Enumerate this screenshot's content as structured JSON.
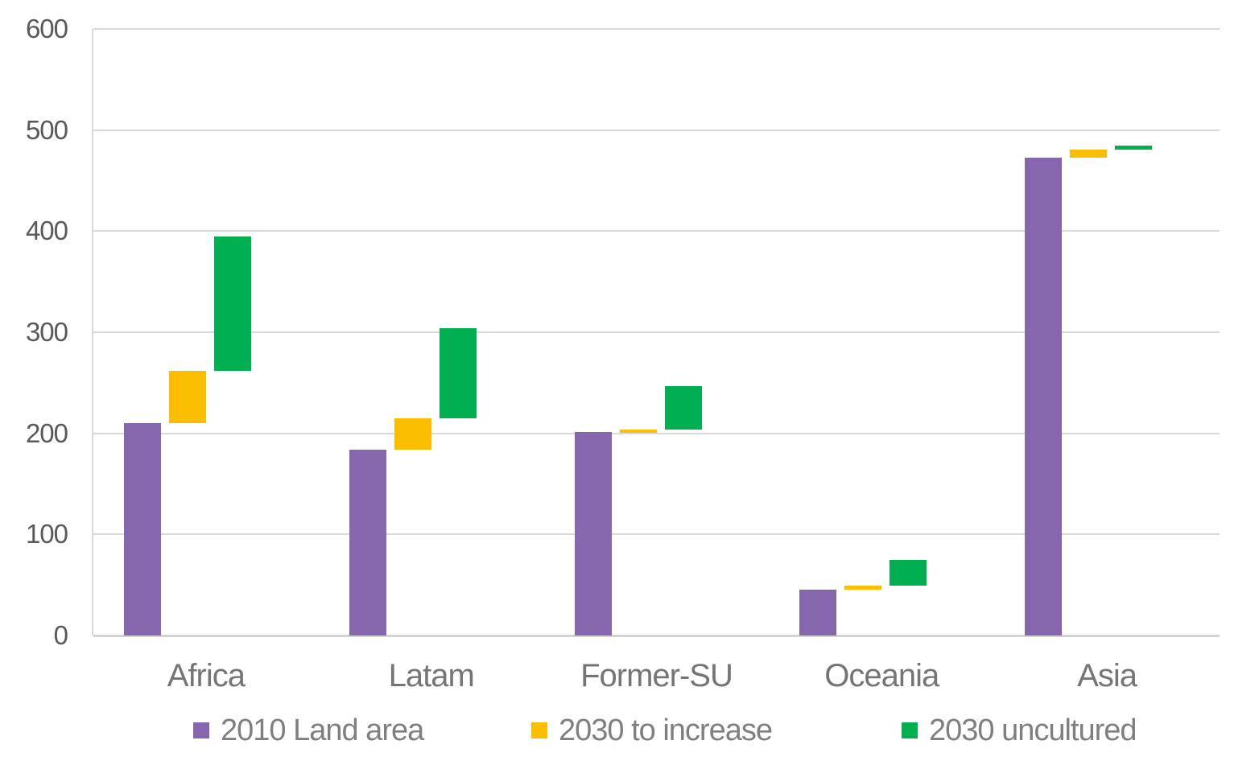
{
  "chart_data": {
    "type": "bar",
    "subtype": "floating-waterfall-columns",
    "title": "",
    "xlabel": "",
    "ylabel": "",
    "categories": [
      "Africa",
      "Latam",
      "Former-SU",
      "Oceania",
      "Asia"
    ],
    "series": [
      {
        "name": "2010 Land area",
        "color": "#8667AE",
        "ranges": [
          [
            0,
            210
          ],
          [
            0,
            184
          ],
          [
            0,
            201
          ],
          [
            0,
            45
          ],
          [
            0,
            473
          ]
        ]
      },
      {
        "name": "2030 to increase",
        "color": "#FBBD00",
        "ranges": [
          [
            210,
            262
          ],
          [
            184,
            215
          ],
          [
            201,
            204
          ],
          [
            45,
            49
          ],
          [
            473,
            481
          ]
        ]
      },
      {
        "name": "2030 uncultured",
        "color": "#00AF50",
        "ranges": [
          [
            262,
            395
          ],
          [
            215,
            304
          ],
          [
            204,
            247
          ],
          [
            49,
            75
          ],
          [
            481,
            485
          ]
        ]
      }
    ],
    "ylim": [
      0,
      600
    ],
    "yticks": [
      0,
      100,
      200,
      300,
      400,
      500,
      600
    ],
    "grid": true,
    "legend_position": "bottom",
    "axis_color": "#d9d9d9",
    "gridline_color": "#d9d9d9",
    "tick_label_color": "#595959",
    "category_label_color": "#757575",
    "legend_label_color": "#7f7f7f",
    "background_color": "#ffffff"
  }
}
